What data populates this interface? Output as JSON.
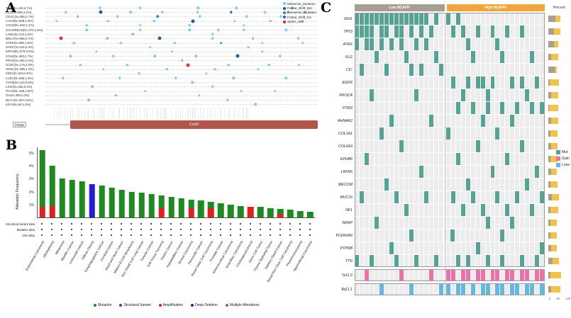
{
  "panels": {
    "a": {
      "label": "A"
    },
    "b": {
      "label": "B"
    },
    "c": {
      "label": "C"
    }
  },
  "chart_data": [
    {
      "id": "panel-a-mutation-lollipop",
      "type": "scatter",
      "xmax": 741,
      "protein": {
        "length_label": "741aa",
        "track_color": "#d0d0d0",
        "domain": {
          "name": "Cnd2",
          "start": 68,
          "end": 741,
          "color": "#b0564a"
        }
      },
      "legend": [
        {
          "label": "Missense_Mutation",
          "color": "#7fc4e3"
        },
        {
          "label": "Frame_Shift_Del",
          "color": "#15508c"
        },
        {
          "label": "Nonsense_Mutation",
          "color": "#3a7dbd"
        },
        {
          "label": "Frame_Shift_Ins",
          "color": "#2166ac"
        },
        {
          "label": "Splice_Site",
          "color": "#e02020"
        }
      ],
      "rows": [
        {
          "label": "GBM(N=149,4.7%)",
          "dots": [
            [
              148,
              0
            ],
            [
              258,
              0
            ],
            [
              415,
              0
            ],
            [
              520,
              0
            ],
            [
              672,
              0
            ]
          ]
        },
        {
          "label": "LGG(N=509,3.2%)",
          "dots": [
            [
              55,
              0
            ],
            [
              150,
              1
            ],
            [
              232,
              0
            ],
            [
              318,
              0
            ],
            [
              414,
              0
            ],
            [
              505,
              3
            ],
            [
              598,
              0
            ],
            [
              660,
              0
            ],
            [
              705,
              0
            ]
          ]
        },
        {
          "label": "CESC(N=289,2.7%)",
          "dots": [
            [
              88,
              0
            ],
            [
              196,
              0
            ],
            [
              305,
              2
            ],
            [
              420,
              0
            ],
            [
              548,
              0
            ],
            [
              640,
              0
            ]
          ]
        },
        {
          "label": "LUAD(N=509,1.8%)",
          "dots": [
            [
              30,
              0
            ],
            [
              170,
              0
            ],
            [
              296,
              0
            ],
            [
              402,
              1
            ],
            [
              515,
              0
            ],
            [
              612,
              0
            ],
            [
              700,
              0
            ]
          ]
        },
        {
          "label": "COAD(N=282,2.1%)",
          "dots": [
            [
              112,
              0
            ],
            [
              258,
              0
            ],
            [
              392,
              0
            ],
            [
              540,
              0
            ]
          ]
        },
        {
          "label": "COADREAD(N=372,1.8%)",
          "dots": [
            [
              112,
              0
            ],
            [
              258,
              0
            ],
            [
              392,
              0
            ],
            [
              470,
              0
            ],
            [
              540,
              0
            ],
            [
              655,
              0
            ]
          ]
        },
        {
          "label": "LAML(N=123,1.6%)",
          "dots": [
            [
              238,
              0
            ],
            [
              455,
              0
            ]
          ]
        },
        {
          "label": "BRCA(N=986,0.7%)",
          "dots": [
            [
              42,
              4
            ],
            [
              168,
              0
            ],
            [
              310,
              1
            ],
            [
              455,
              0
            ],
            [
              565,
              0
            ],
            [
              688,
              0
            ]
          ]
        },
        {
          "label": "STES(N=595,1.9%)",
          "dots": [
            [
              78,
              0
            ],
            [
              205,
              0
            ],
            [
              352,
              0
            ],
            [
              478,
              2
            ],
            [
              590,
              0
            ],
            [
              700,
              0
            ]
          ]
        },
        {
          "label": "SARC(N=234,0.4%)",
          "dots": [
            [
              285,
              0
            ],
            [
              552,
              0
            ]
          ]
        },
        {
          "label": "KIPAN(N=679,0.6%)",
          "dots": [
            [
              138,
              0
            ],
            [
              345,
              0
            ],
            [
              590,
              0
            ]
          ]
        },
        {
          "label": "STAD(N=400,2.7%)",
          "dots": [
            [
              68,
              0
            ],
            [
              185,
              0
            ],
            [
              298,
              0
            ],
            [
              410,
              0
            ],
            [
              522,
              1
            ],
            [
              638,
              0
            ]
          ]
        },
        {
          "label": "PRAD(N=492,0.2%)",
          "dots": [
            [
              372,
              0
            ]
          ]
        },
        {
          "label": "UCEC(N=175,4.0%)",
          "dots": [
            [
              95,
              0
            ],
            [
              222,
              0
            ],
            [
              388,
              4
            ],
            [
              498,
              0
            ],
            [
              608,
              0
            ],
            [
              690,
              0
            ]
          ]
        },
        {
          "label": "HNSC(N=496,1.2%)",
          "dots": [
            [
              158,
              0
            ],
            [
              330,
              0
            ],
            [
              462,
              0
            ],
            [
              578,
              0
            ]
          ]
        },
        {
          "label": "KIRC(N=334,0.6%)",
          "dots": [
            [
              255,
              0
            ],
            [
              438,
              0
            ]
          ]
        },
        {
          "label": "LUSC(N=465,1.6%)",
          "dots": [
            [
              48,
              0
            ],
            [
              202,
              0
            ],
            [
              355,
              0
            ],
            [
              512,
              0
            ],
            [
              655,
              0
            ]
          ]
        },
        {
          "label": "THYM(N=118,0.8%)",
          "dots": [
            [
              400,
              0
            ]
          ]
        },
        {
          "label": "LIHC(N=356,0.3%)",
          "dots": [
            [
              128,
              0
            ],
            [
              455,
              0
            ]
          ]
        },
        {
          "label": "PAAD(N=168,1.8%)",
          "dots": [
            [
              272,
              0
            ],
            [
              532,
              0
            ],
            [
              625,
              0
            ]
          ]
        },
        {
          "label": "OV(N=385,0.3%)",
          "dots": [
            [
              192,
              0
            ],
            [
              418,
              0
            ]
          ]
        },
        {
          "label": "BLCA(N=407,0.5%)",
          "dots": [
            [
              118,
              0
            ],
            [
              495,
              0
            ]
          ]
        },
        {
          "label": "KICH(N=64,1.6%)",
          "dots": [
            [
              572,
              0
            ]
          ]
        }
      ]
    },
    {
      "id": "panel-b-alteration-frequency",
      "type": "bar",
      "ylabel": "Alteration Frequency",
      "ymax": 5.5,
      "yticks": [
        1,
        2,
        3,
        4,
        5
      ],
      "categories": [
        "Endometrial Carcinoma",
        "Glioblastoma",
        "Melanoma",
        "Bladder Cancer",
        "Colorectal Cancer",
        "Diffuse Glioma",
        "Esophagogastric Cancer",
        "Cervical Cancer",
        "Head and Neck Cancer",
        "Mature B-Cell Neoplasms",
        "Non-Small Cell Lung Cancer",
        "Ovarian Cancer",
        "Soft Tissue Sarcoma",
        "Gastric Cancer",
        "Hepatobiliary Cancer",
        "Breast Carcinoma",
        "Pancreatic Cancer",
        "Renal Clear Cell Carcinoma",
        "Prostate Cancer",
        "Adrenocortical Carcinoma",
        "Ampullary Carcinoma",
        "Cholangiocarcinoma",
        "Germ Cell Tumor",
        "Thymic Epithelial Tumor",
        "Salivary Gland Cancer",
        "Renal Non-Clear Cell Carcinoma",
        "Pheochromocytoma",
        "Appendiceal Carcinoma"
      ],
      "series": [
        {
          "name": "Amplification",
          "color": "#e02020",
          "values": [
            0.8,
            0.9,
            0,
            0,
            0,
            0,
            0,
            0,
            0,
            0,
            0,
            0,
            0.7,
            0,
            0,
            0.7,
            0,
            0.7,
            0,
            0,
            0,
            0.85,
            0,
            0,
            0.3,
            0,
            0,
            0
          ]
        },
        {
          "name": "Mutation",
          "color": "#1f8a1f",
          "values": [
            4.4,
            3.1,
            3.0,
            2.9,
            2.8,
            0,
            2.45,
            2.3,
            2.15,
            2.0,
            1.9,
            1.8,
            1.0,
            1.6,
            1.5,
            0.7,
            1.3,
            0.5,
            1.1,
            1.0,
            0.9,
            0,
            0.8,
            0.7,
            0.35,
            0.6,
            0.5,
            0.45
          ]
        },
        {
          "name": "Deep Deletion",
          "color": "#2020d0",
          "values": [
            0,
            0,
            0,
            0,
            0,
            2.6,
            0,
            0,
            0,
            0,
            0,
            0,
            0,
            0,
            0,
            0,
            0,
            0,
            0,
            0,
            0,
            0,
            0,
            0,
            0,
            0,
            0,
            0
          ]
        }
      ],
      "data_rows": [
        "Structural variant data",
        "Mutation data",
        "CNA data"
      ],
      "legend": [
        {
          "label": "Mutation",
          "color": "#1f8a1f"
        },
        {
          "label": "Structural Variant",
          "color": "#7b2d8e"
        },
        {
          "label": "Amplification",
          "color": "#e02020"
        },
        {
          "label": "Deep Deletion",
          "color": "#2020d0"
        },
        {
          "label": "Multiple Alterations",
          "color": "#6e6e6e"
        }
      ]
    },
    {
      "id": "panel-c-oncoprint",
      "type": "heatmap",
      "groups": [
        {
          "label": "Low NCAPH",
          "color": "#a89f93",
          "cols": 18
        },
        {
          "label": "High NCAPH",
          "color": "#f0a63c",
          "cols": 20
        }
      ],
      "percent_header": "Percent",
      "cell_colors": {
        "mut": "#55a493",
        "gain": "#f06fa8",
        "loss": "#62b8e0",
        "empty": "#ececec"
      },
      "percent_colors": {
        "low": "#a89f93",
        "high": "#f2c14e"
      },
      "axis_ticks": [
        "0",
        "50",
        "100"
      ],
      "legend": [
        {
          "label": "Mut",
          "color": "#55a493"
        },
        {
          "label": "Gain",
          "color": "#f06fa8"
        },
        {
          "label": "Loss",
          "color": "#62b8e0"
        }
      ],
      "rows": [
        {
          "gene": "IDH1",
          "kind": "mut",
          "cells": [
            0,
            1,
            2,
            3,
            4,
            5,
            6,
            7,
            8,
            9,
            10,
            11,
            12,
            13,
            14,
            16,
            18,
            20
          ],
          "percent": {
            "low": 45,
            "high": 30
          }
        },
        {
          "gene": "TP53",
          "kind": "mut",
          "cells": [
            0,
            1,
            2,
            3,
            5,
            6,
            8,
            9,
            11,
            13,
            15,
            19,
            21,
            24,
            27,
            30,
            33
          ],
          "percent": {
            "low": 35,
            "high": 40
          }
        },
        {
          "gene": "ATRX",
          "kind": "mut",
          "cells": [
            0,
            2,
            3,
            5,
            7,
            9,
            12,
            14,
            22,
            28
          ],
          "percent": {
            "low": 35,
            "high": 30
          }
        },
        {
          "gene": "FLG",
          "kind": "mut",
          "cells": [
            4,
            10,
            16,
            23,
            29,
            35
          ],
          "percent": {
            "low": 20,
            "high": 45
          }
        },
        {
          "gene": "CIC",
          "kind": "mut",
          "cells": [
            1,
            6,
            11,
            13,
            17
          ],
          "percent": {
            "low": 40,
            "high": 15
          }
        },
        {
          "gene": "EGFR",
          "kind": "mut",
          "cells": [
            19,
            22,
            24,
            25,
            27,
            31,
            33,
            36
          ],
          "percent": {
            "low": 8,
            "high": 60
          }
        },
        {
          "gene": "PIK3CA",
          "kind": "mut",
          "cells": [
            3,
            12,
            21,
            26,
            34
          ],
          "percent": {
            "low": 18,
            "high": 45
          }
        },
        {
          "gene": "PTEN",
          "kind": "mut",
          "cells": [
            20,
            23,
            26,
            29,
            32,
            35,
            37
          ],
          "percent": {
            "low": 6,
            "high": 55
          }
        },
        {
          "gene": "AHNAK2",
          "kind": "mut",
          "cells": [
            7,
            15,
            25,
            31
          ],
          "percent": {
            "low": 20,
            "high": 42
          }
        },
        {
          "gene": "COL1A1",
          "kind": "mut",
          "cells": [
            5,
            18,
            28
          ],
          "percent": {
            "low": 15,
            "high": 45
          }
        },
        {
          "gene": "COL6A3",
          "kind": "mut",
          "cells": [
            9,
            24,
            33
          ],
          "percent": {
            "low": 16,
            "high": 44
          }
        },
        {
          "gene": "EPHB6",
          "kind": "mut",
          "cells": [
            2,
            20,
            30
          ],
          "percent": {
            "low": 15,
            "high": 42
          }
        },
        {
          "gene": "LRFN5",
          "kind": "mut",
          "cells": [
            13,
            27,
            36
          ],
          "percent": {
            "low": 16,
            "high": 40
          }
        },
        {
          "gene": "MECOM",
          "kind": "mut",
          "cells": [
            6,
            22,
            34
          ],
          "percent": {
            "low": 14,
            "high": 44
          }
        },
        {
          "gene": "MUC16",
          "kind": "mut",
          "cells": [
            1,
            8,
            14,
            19,
            23,
            28,
            32,
            37
          ],
          "percent": {
            "low": 22,
            "high": 46
          }
        },
        {
          "gene": "NF1",
          "kind": "mut",
          "cells": [
            10,
            21,
            25,
            30,
            35
          ],
          "percent": {
            "low": 12,
            "high": 50
          }
        },
        {
          "gene": "NRAP",
          "kind": "mut",
          "cells": [
            4,
            26,
            31
          ],
          "percent": {
            "low": 15,
            "high": 40
          }
        },
        {
          "gene": "PLEKHA6",
          "kind": "mut",
          "cells": [
            11,
            19,
            29
          ],
          "percent": {
            "low": 14,
            "high": 42
          }
        },
        {
          "gene": "PTPRB",
          "kind": "mut",
          "cells": [
            7,
            24,
            37
          ],
          "percent": {
            "low": 16,
            "high": 40
          }
        },
        {
          "gene": "TTN",
          "kind": "mut",
          "cells": [
            0,
            3,
            8,
            12,
            16,
            20,
            22,
            26,
            29,
            33,
            36
          ],
          "percent": {
            "low": 25,
            "high": 45
          }
        },
        {
          "gene": "7p11.2",
          "kind": "gain",
          "cells": [
            2,
            9,
            15,
            18,
            19,
            21,
            22,
            24,
            25,
            27,
            28,
            30,
            31,
            33,
            34,
            36,
            37
          ],
          "percent": {
            "low": 15,
            "high": 65
          }
        },
        {
          "gene": "8q11.1",
          "kind": "loss",
          "cells": [
            5,
            11,
            17,
            18,
            20,
            21,
            23,
            25,
            26,
            28,
            29,
            31,
            32,
            34,
            35,
            37
          ],
          "percent": {
            "low": 16,
            "high": 60
          }
        }
      ]
    }
  ]
}
